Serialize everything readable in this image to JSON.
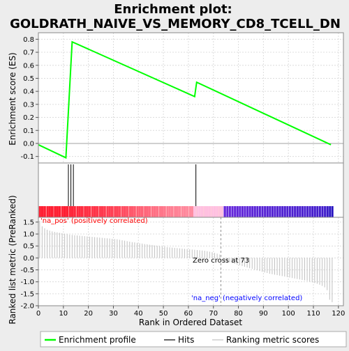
{
  "chart_data": {
    "type": "line",
    "title_line1": "Enrichment plot:",
    "title_line2": "GOLDRATH_NAIVE_VS_MEMORY_CD8_TCELL_DN",
    "es_ylabel": "Enrichment score (ES)",
    "rank_ylabel": "Ranked list metric (PreRanked)",
    "xlabel": "Rank in Ordered Dataset",
    "x_range": [
      0,
      122
    ],
    "x_ticks": [
      0,
      10,
      20,
      30,
      40,
      50,
      60,
      70,
      80,
      90,
      100,
      110,
      120
    ],
    "es_range": [
      -0.15,
      0.85
    ],
    "es_ticks": [
      -0.1,
      0.0,
      0.1,
      0.2,
      0.3,
      0.4,
      0.5,
      0.6,
      0.7,
      0.8
    ],
    "es_tick_labels": [
      "-0.1",
      "0.0",
      "0.1",
      "0.2",
      "0.3",
      "0.4",
      "0.5",
      "0.6",
      "0.7",
      "0.8"
    ],
    "es_profile": {
      "x": [
        0,
        11,
        13.5,
        62.5,
        63.3,
        117
      ],
      "y": [
        -0.01,
        -0.11,
        0.78,
        0.36,
        0.47,
        -0.01
      ]
    },
    "hits": [
      12,
      13,
      14,
      63
    ],
    "rank_range": [
      -2.0,
      1.7
    ],
    "rank_ticks": [
      -2.0,
      -1.5,
      -1.0,
      -0.5,
      0.0,
      0.5,
      1.0,
      1.5
    ],
    "rank_tick_labels": [
      "-2.0",
      "-1.5",
      "-1.0",
      "-0.5",
      "0.0",
      "0.5",
      "1.0",
      "1.5"
    ],
    "rank_metric": [
      1.55,
      1.32,
      1.24,
      1.18,
      1.14,
      1.11,
      1.09,
      1.07,
      1.05,
      1.03,
      1.01,
      0.99,
      0.97,
      0.96,
      0.95,
      0.94,
      0.93,
      0.92,
      0.91,
      0.9,
      0.89,
      0.88,
      0.87,
      0.86,
      0.85,
      0.84,
      0.83,
      0.82,
      0.81,
      0.8,
      0.79,
      0.78,
      0.76,
      0.74,
      0.72,
      0.7,
      0.68,
      0.66,
      0.65,
      0.63,
      0.61,
      0.6,
      0.58,
      0.57,
      0.55,
      0.54,
      0.52,
      0.51,
      0.49,
      0.48,
      0.47,
      0.45,
      0.44,
      0.43,
      0.42,
      0.41,
      0.4,
      0.39,
      0.38,
      0.37,
      0.36,
      0.35,
      0.34,
      0.33,
      0.32,
      0.31,
      0.3,
      0.28,
      0.26,
      0.24,
      0.21,
      0.18,
      0.14,
      0.0,
      -0.12,
      -0.16,
      -0.19,
      -0.22,
      -0.25,
      -0.28,
      -0.31,
      -0.34,
      -0.37,
      -0.4,
      -0.43,
      -0.46,
      -0.49,
      -0.52,
      -0.55,
      -0.58,
      -0.61,
      -0.63,
      -0.66,
      -0.68,
      -0.7,
      -0.72,
      -0.74,
      -0.76,
      -0.78,
      -0.8,
      -0.82,
      -0.84,
      -0.86,
      -0.88,
      -0.9,
      -0.92,
      -0.94,
      -0.96,
      -0.99,
      -1.02,
      -1.05,
      -1.08,
      -1.12,
      -1.17,
      -1.23,
      -1.35,
      -1.75,
      -1.85
    ],
    "zero_cross_rank": 73,
    "zero_cross_label": "Zero cross at 73",
    "pos_label": "'na_pos' (positively correlated)",
    "neg_label": "'na_neg' (negatively correlated)",
    "legend": [
      {
        "label": "Enrichment profile",
        "color": "#00ff00"
      },
      {
        "label": "Hits",
        "color": "#000000"
      },
      {
        "label": "Ranking metric scores",
        "color": "#c0c0c0"
      }
    ],
    "colors": {
      "profile": "#00ff00",
      "hit": "#000000",
      "metric": "#c0c0c0",
      "pos_text": "#ff0000",
      "neg_text": "#0000ff",
      "grid": "#dcdcdc"
    }
  }
}
